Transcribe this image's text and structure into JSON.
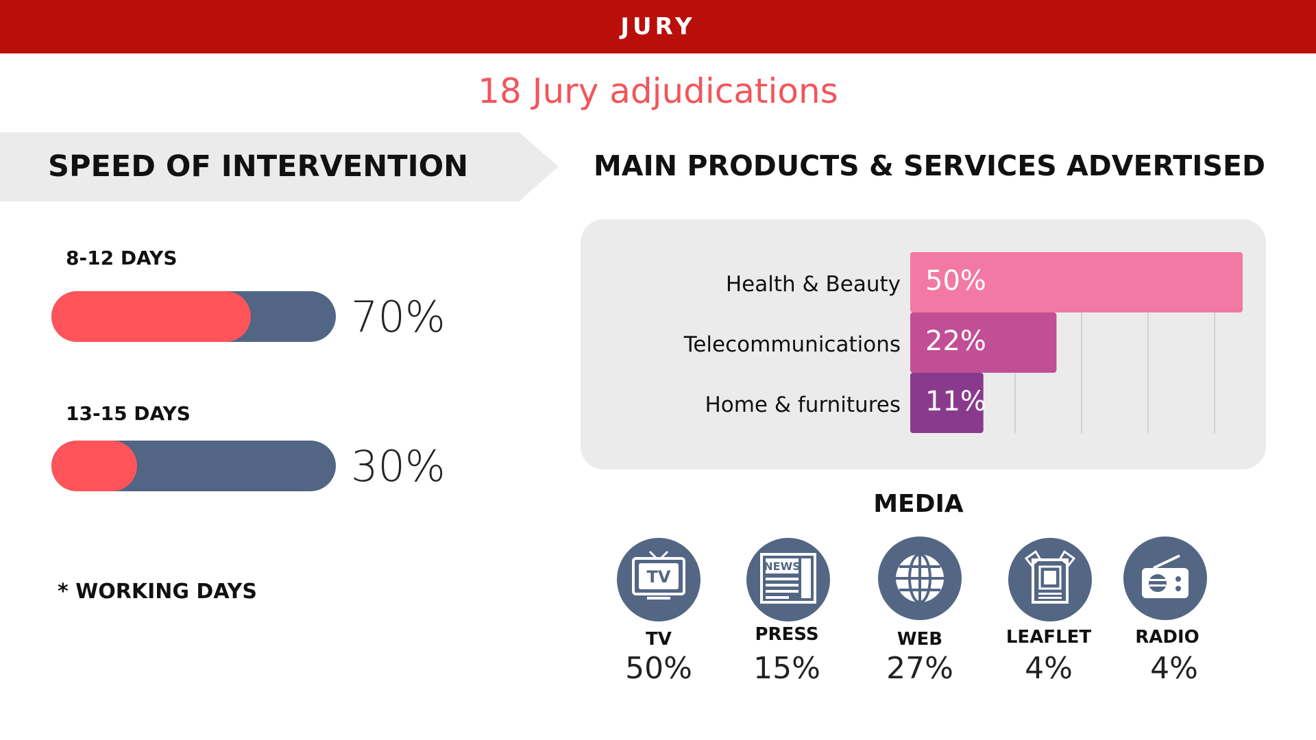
{
  "header": {
    "title": "JURY"
  },
  "subtitle": "18 Jury adjudications",
  "speed": {
    "heading": "SPEED OF INTERVENTION",
    "items": [
      {
        "label": "8-12 DAYS",
        "value_text": "70%",
        "fraction": 0.7
      },
      {
        "label": "13-15 DAYS",
        "value_text": "30%",
        "fraction": 0.3
      }
    ],
    "footnote": "* WORKING DAYS"
  },
  "products": {
    "heading": "MAIN PRODUCTS & SERVICES ADVERTISED"
  },
  "chart_data": {
    "type": "bar",
    "orientation": "horizontal",
    "categories": [
      "Health & Beauty",
      "Telecommunications",
      "Home & furnitures"
    ],
    "values": [
      50,
      22,
      11
    ],
    "labels": [
      "50%",
      "22%",
      "11%"
    ],
    "xlim": [
      0,
      50
    ],
    "grid": true,
    "colors": [
      "#f279a3",
      "#c24f95",
      "#8a3a8c"
    ]
  },
  "media": {
    "heading": "MEDIA",
    "items": [
      {
        "label": "TV",
        "value": "50%",
        "icon": "tv-icon"
      },
      {
        "label": "PRESS",
        "value": "15%",
        "icon": "newspaper-icon"
      },
      {
        "label": "WEB",
        "value": "27%",
        "icon": "globe-icon"
      },
      {
        "label": "LEAFLET",
        "value": "4%",
        "icon": "leaflet-icon"
      },
      {
        "label": "RADIO",
        "value": "4%",
        "icon": "radio-icon"
      }
    ],
    "icon_text": {
      "tv": "TV",
      "press": "NEWS"
    }
  },
  "colors": {
    "header": "#b90e0a",
    "accent": "#f2555a",
    "track": "#526584",
    "fill": "#ff5459",
    "icon_bg": "#536684"
  }
}
